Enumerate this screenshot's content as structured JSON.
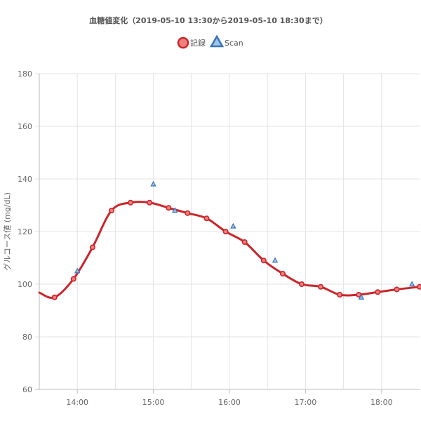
{
  "chart_data": {
    "type": "line",
    "title": "血糖値変化（2019-05-10 13:30から2019-05-10 18:30まで）",
    "ylabel": "グルコース値 (mg/dL)",
    "xlabel": "",
    "ylim": [
      60,
      180
    ],
    "yticks": [
      60,
      80,
      100,
      120,
      140,
      160,
      180
    ],
    "xlim": [
      "13:30",
      "18:30"
    ],
    "xticks": [
      "14:00",
      "15:00",
      "16:00",
      "17:00",
      "18:00"
    ],
    "grid": true,
    "legend_position": "top-center",
    "series": [
      {
        "name": "記録",
        "type": "line",
        "color": "#c9262b",
        "fill": "#f08080",
        "marker": "circle",
        "smooth": true,
        "points": [
          [
            "13:30",
            96.8
          ],
          [
            "13:42",
            95
          ],
          [
            "13:57",
            102
          ],
          [
            "14:12",
            114
          ],
          [
            "14:27",
            128
          ],
          [
            "14:42",
            131
          ],
          [
            "14:57",
            131
          ],
          [
            "15:12",
            129
          ],
          [
            "15:27",
            127
          ],
          [
            "15:42",
            125
          ],
          [
            "15:57",
            120
          ],
          [
            "16:12",
            116
          ],
          [
            "16:27",
            109
          ],
          [
            "16:42",
            104
          ],
          [
            "16:57",
            100
          ],
          [
            "17:12",
            99
          ],
          [
            "17:27",
            96
          ],
          [
            "17:42",
            96
          ],
          [
            "17:57",
            97
          ],
          [
            "18:12",
            98
          ],
          [
            "18:30",
            99
          ]
        ]
      },
      {
        "name": "Scan",
        "type": "scatter",
        "color": "#3a73b8",
        "fill": "#9ec6ea",
        "marker": "triangle",
        "points": [
          [
            "14:00",
            105
          ],
          [
            "15:00",
            138
          ],
          [
            "15:17",
            128
          ],
          [
            "16:03",
            122
          ],
          [
            "16:36",
            109
          ],
          [
            "17:44",
            95
          ],
          [
            "18:24",
            100
          ]
        ]
      }
    ]
  }
}
